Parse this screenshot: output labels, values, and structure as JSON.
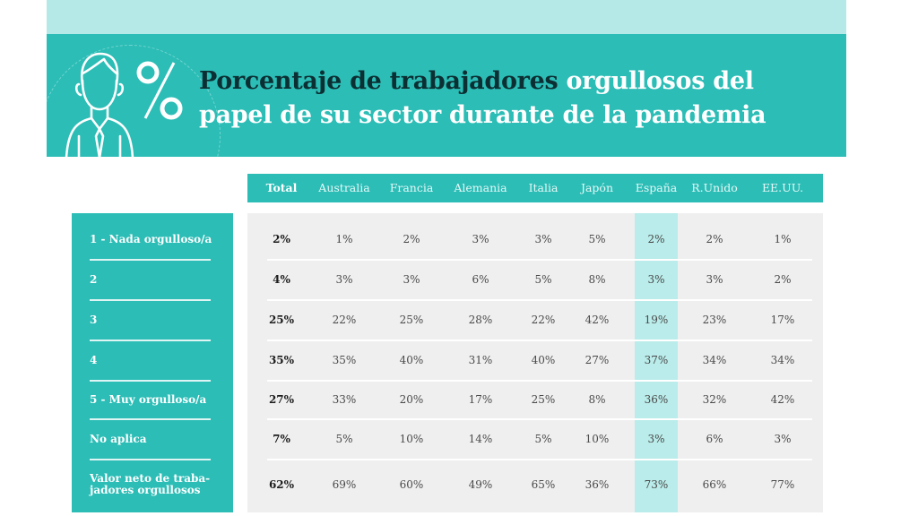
{
  "title": {
    "dark": "Porcentaje de trabajadores",
    "light_line1": "orgullosos del",
    "line2": "papel de su sector durante de la pandemia"
  },
  "icons": [
    "person-icon",
    "percent-icon"
  ],
  "colors": {
    "teal": "#2bbdb6",
    "light_teal": "#b4e9e7",
    "highlight": "#b9ecea",
    "dark_title": "#0c2f33",
    "row_bg": "#efefef"
  },
  "chart_data": {
    "type": "table",
    "columns": [
      "Total",
      "Australia",
      "Francia",
      "Alemania",
      "Italia",
      "Japón",
      "España",
      "R.Unido",
      "EE.UU."
    ],
    "highlighted_column": "España",
    "rows": [
      {
        "label": "1 - Nada orgulloso/a",
        "values": [
          "2%",
          "1%",
          "2%",
          "3%",
          "3%",
          "5%",
          "2%",
          "2%",
          "1%"
        ]
      },
      {
        "label": "2",
        "values": [
          "4%",
          "3%",
          "3%",
          "6%",
          "5%",
          "8%",
          "3%",
          "3%",
          "2%"
        ]
      },
      {
        "label": "3",
        "values": [
          "25%",
          "22%",
          "25%",
          "28%",
          "22%",
          "42%",
          "19%",
          "23%",
          "17%"
        ]
      },
      {
        "label": "4",
        "values": [
          "35%",
          "35%",
          "40%",
          "31%",
          "40%",
          "27%",
          "37%",
          "34%",
          "34%"
        ]
      },
      {
        "label": "5 - Muy orgulloso/a",
        "values": [
          "27%",
          "33%",
          "20%",
          "17%",
          "25%",
          "8%",
          "36%",
          "32%",
          "42%"
        ]
      },
      {
        "label": "No aplica",
        "values": [
          "7%",
          "5%",
          "10%",
          "14%",
          "5%",
          "10%",
          "3%",
          "6%",
          "3%"
        ]
      },
      {
        "label": "Valor neto de traba-\njadores orgullosos",
        "values": [
          "62%",
          "69%",
          "60%",
          "49%",
          "65%",
          "36%",
          "73%",
          "66%",
          "77%"
        ]
      }
    ]
  }
}
